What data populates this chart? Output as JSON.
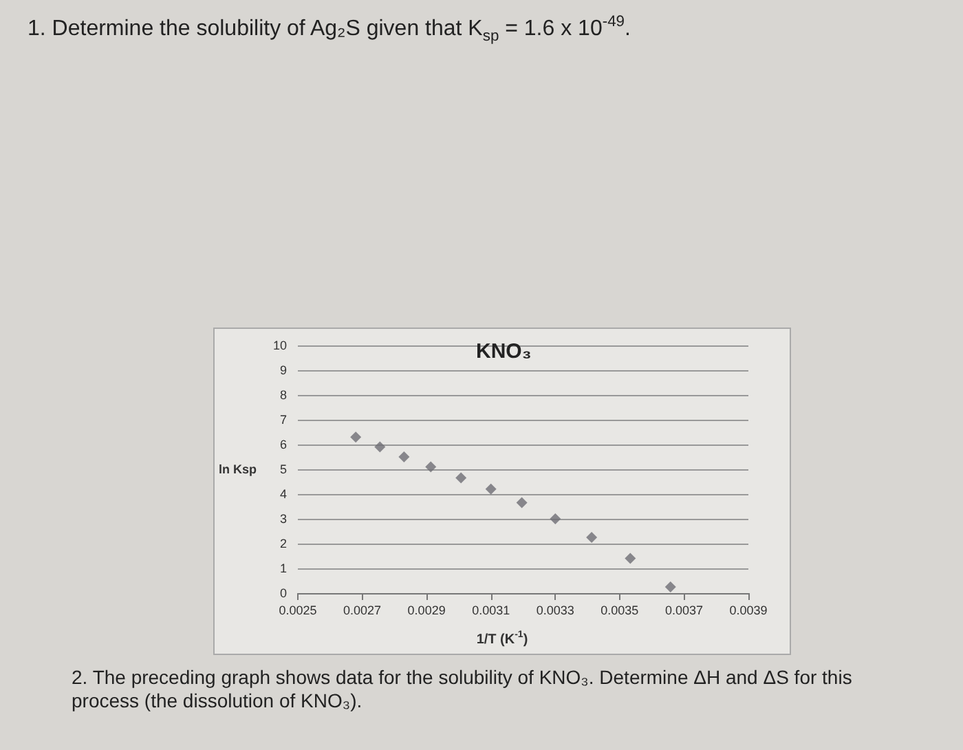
{
  "chart_data": {
    "type": "scatter",
    "title": "KNO₃",
    "xlabel": "1/T (K$^{-1}$)",
    "ylabel": "ln Ksp",
    "annotations": [
      "1. Determine the solubility of Ag₂S given that K$_{sp}$ = 1.6 x 10$^{-49}$.",
      "2. The preceding graph shows data for the solubility of KNO₃. Determine ΔH and ΔS for this process (the dissolution of KNO₃)."
    ],
    "x": [
      0.00268,
      0.002755,
      0.00283,
      0.002913,
      0.003007,
      0.0031,
      0.003196,
      0.0033,
      0.003413,
      0.003533,
      0.003658
    ],
    "values": [
      6.3,
      5.9,
      5.5,
      5.1,
      4.65,
      4.2,
      3.65,
      3.0,
      2.25,
      1.4,
      0.25
    ],
    "color": "#6e6e74",
    "marker": "diamond",
    "xlim": [
      0.0025,
      0.0039
    ],
    "xticks": [
      0.0025,
      0.0027,
      0.0029,
      0.0031,
      0.0033,
      0.0035,
      0.0037,
      0.0039
    ],
    "ylim": [
      0,
      10
    ],
    "yticks": [
      0,
      1,
      2,
      3,
      4,
      5,
      6,
      7,
      8,
      9,
      10
    ],
    "grid": "y"
  }
}
